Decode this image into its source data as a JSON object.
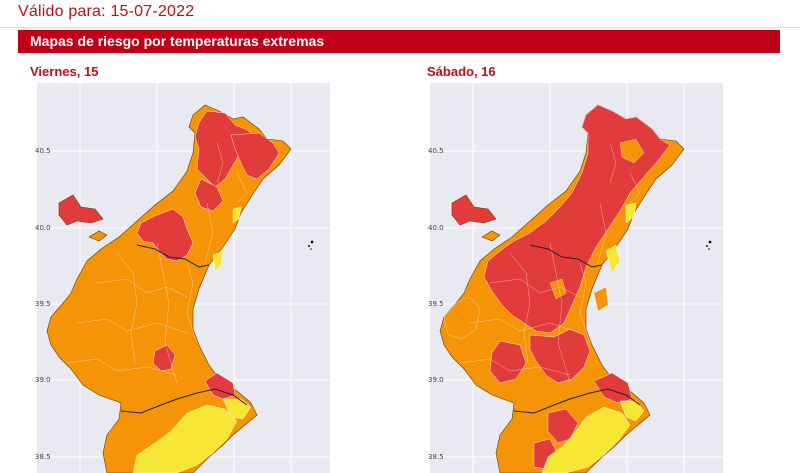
{
  "header": {
    "valid_label": "Válido para:",
    "valid_date": "15-07-2022"
  },
  "banner": {
    "title": "Mapas de riesgo por temperaturas extremas"
  },
  "colors": {
    "banner": "#c00018",
    "risk_very_high": "#e23b3b",
    "risk_high": "#f49406",
    "risk_moderate": "#f7e734",
    "background": "#e8e9f1"
  },
  "maps": [
    {
      "day_label": "Viernes, 15",
      "dominant_risk": "high",
      "lat_ticks": [
        "40.5",
        "40.0",
        "39.5",
        "39.0",
        "38.5"
      ]
    },
    {
      "day_label": "Sábado, 16",
      "dominant_risk": "very_high",
      "lat_ticks": [
        "40.5",
        "40.0",
        "39.5",
        "39.0",
        "38.5"
      ]
    }
  ]
}
